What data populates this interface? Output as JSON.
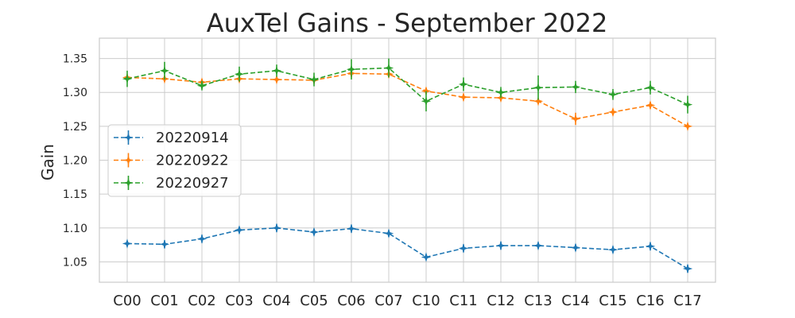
{
  "chart_data": {
    "type": "line",
    "title": "AuxTel Gains - September 2022",
    "xlabel": "",
    "ylabel": "Gain",
    "categories": [
      "C00",
      "C01",
      "C02",
      "C03",
      "C04",
      "C05",
      "C06",
      "C07",
      "C10",
      "C11",
      "C12",
      "C13",
      "C14",
      "C15",
      "C16",
      "C17"
    ],
    "ylim": [
      1.02,
      1.38
    ],
    "yticks": [
      "1.05",
      "1.10",
      "1.15",
      "1.20",
      "1.25",
      "1.30",
      "1.35"
    ],
    "grid": true,
    "legend_position": "center-left",
    "series": [
      {
        "name": "20220914",
        "color": "#1f77b4",
        "values": [
          1.077,
          1.076,
          1.084,
          1.097,
          1.1,
          1.094,
          1.099,
          1.092,
          1.057,
          1.07,
          1.074,
          1.074,
          1.071,
          1.068,
          1.073,
          1.04
        ],
        "errors": [
          0.004,
          0.006,
          0.006,
          0.005,
          0.006,
          0.005,
          0.006,
          0.005,
          0.004,
          0.006,
          0.006,
          0.005,
          0.005,
          0.005,
          0.006,
          0.006
        ]
      },
      {
        "name": "20220922",
        "color": "#ff7f0e",
        "values": [
          1.322,
          1.32,
          1.315,
          1.32,
          1.319,
          1.318,
          1.328,
          1.327,
          1.302,
          1.293,
          1.292,
          1.287,
          1.261,
          1.271,
          1.281,
          1.25
        ],
        "errors": [
          0.004,
          0.004,
          0.005,
          0.005,
          0.004,
          0.005,
          0.006,
          0.005,
          0.005,
          0.005,
          0.005,
          0.004,
          0.009,
          0.005,
          0.005,
          0.004
        ]
      },
      {
        "name": "20220927",
        "color": "#2ca02c",
        "values": [
          1.32,
          1.332,
          1.31,
          1.327,
          1.332,
          1.319,
          1.334,
          1.336,
          1.287,
          1.312,
          1.3,
          1.307,
          1.308,
          1.297,
          1.307,
          1.282
        ],
        "errors": [
          0.012,
          0.013,
          0.007,
          0.011,
          0.009,
          0.01,
          0.015,
          0.014,
          0.015,
          0.01,
          0.008,
          0.018,
          0.009,
          0.008,
          0.01,
          0.013
        ]
      }
    ]
  }
}
